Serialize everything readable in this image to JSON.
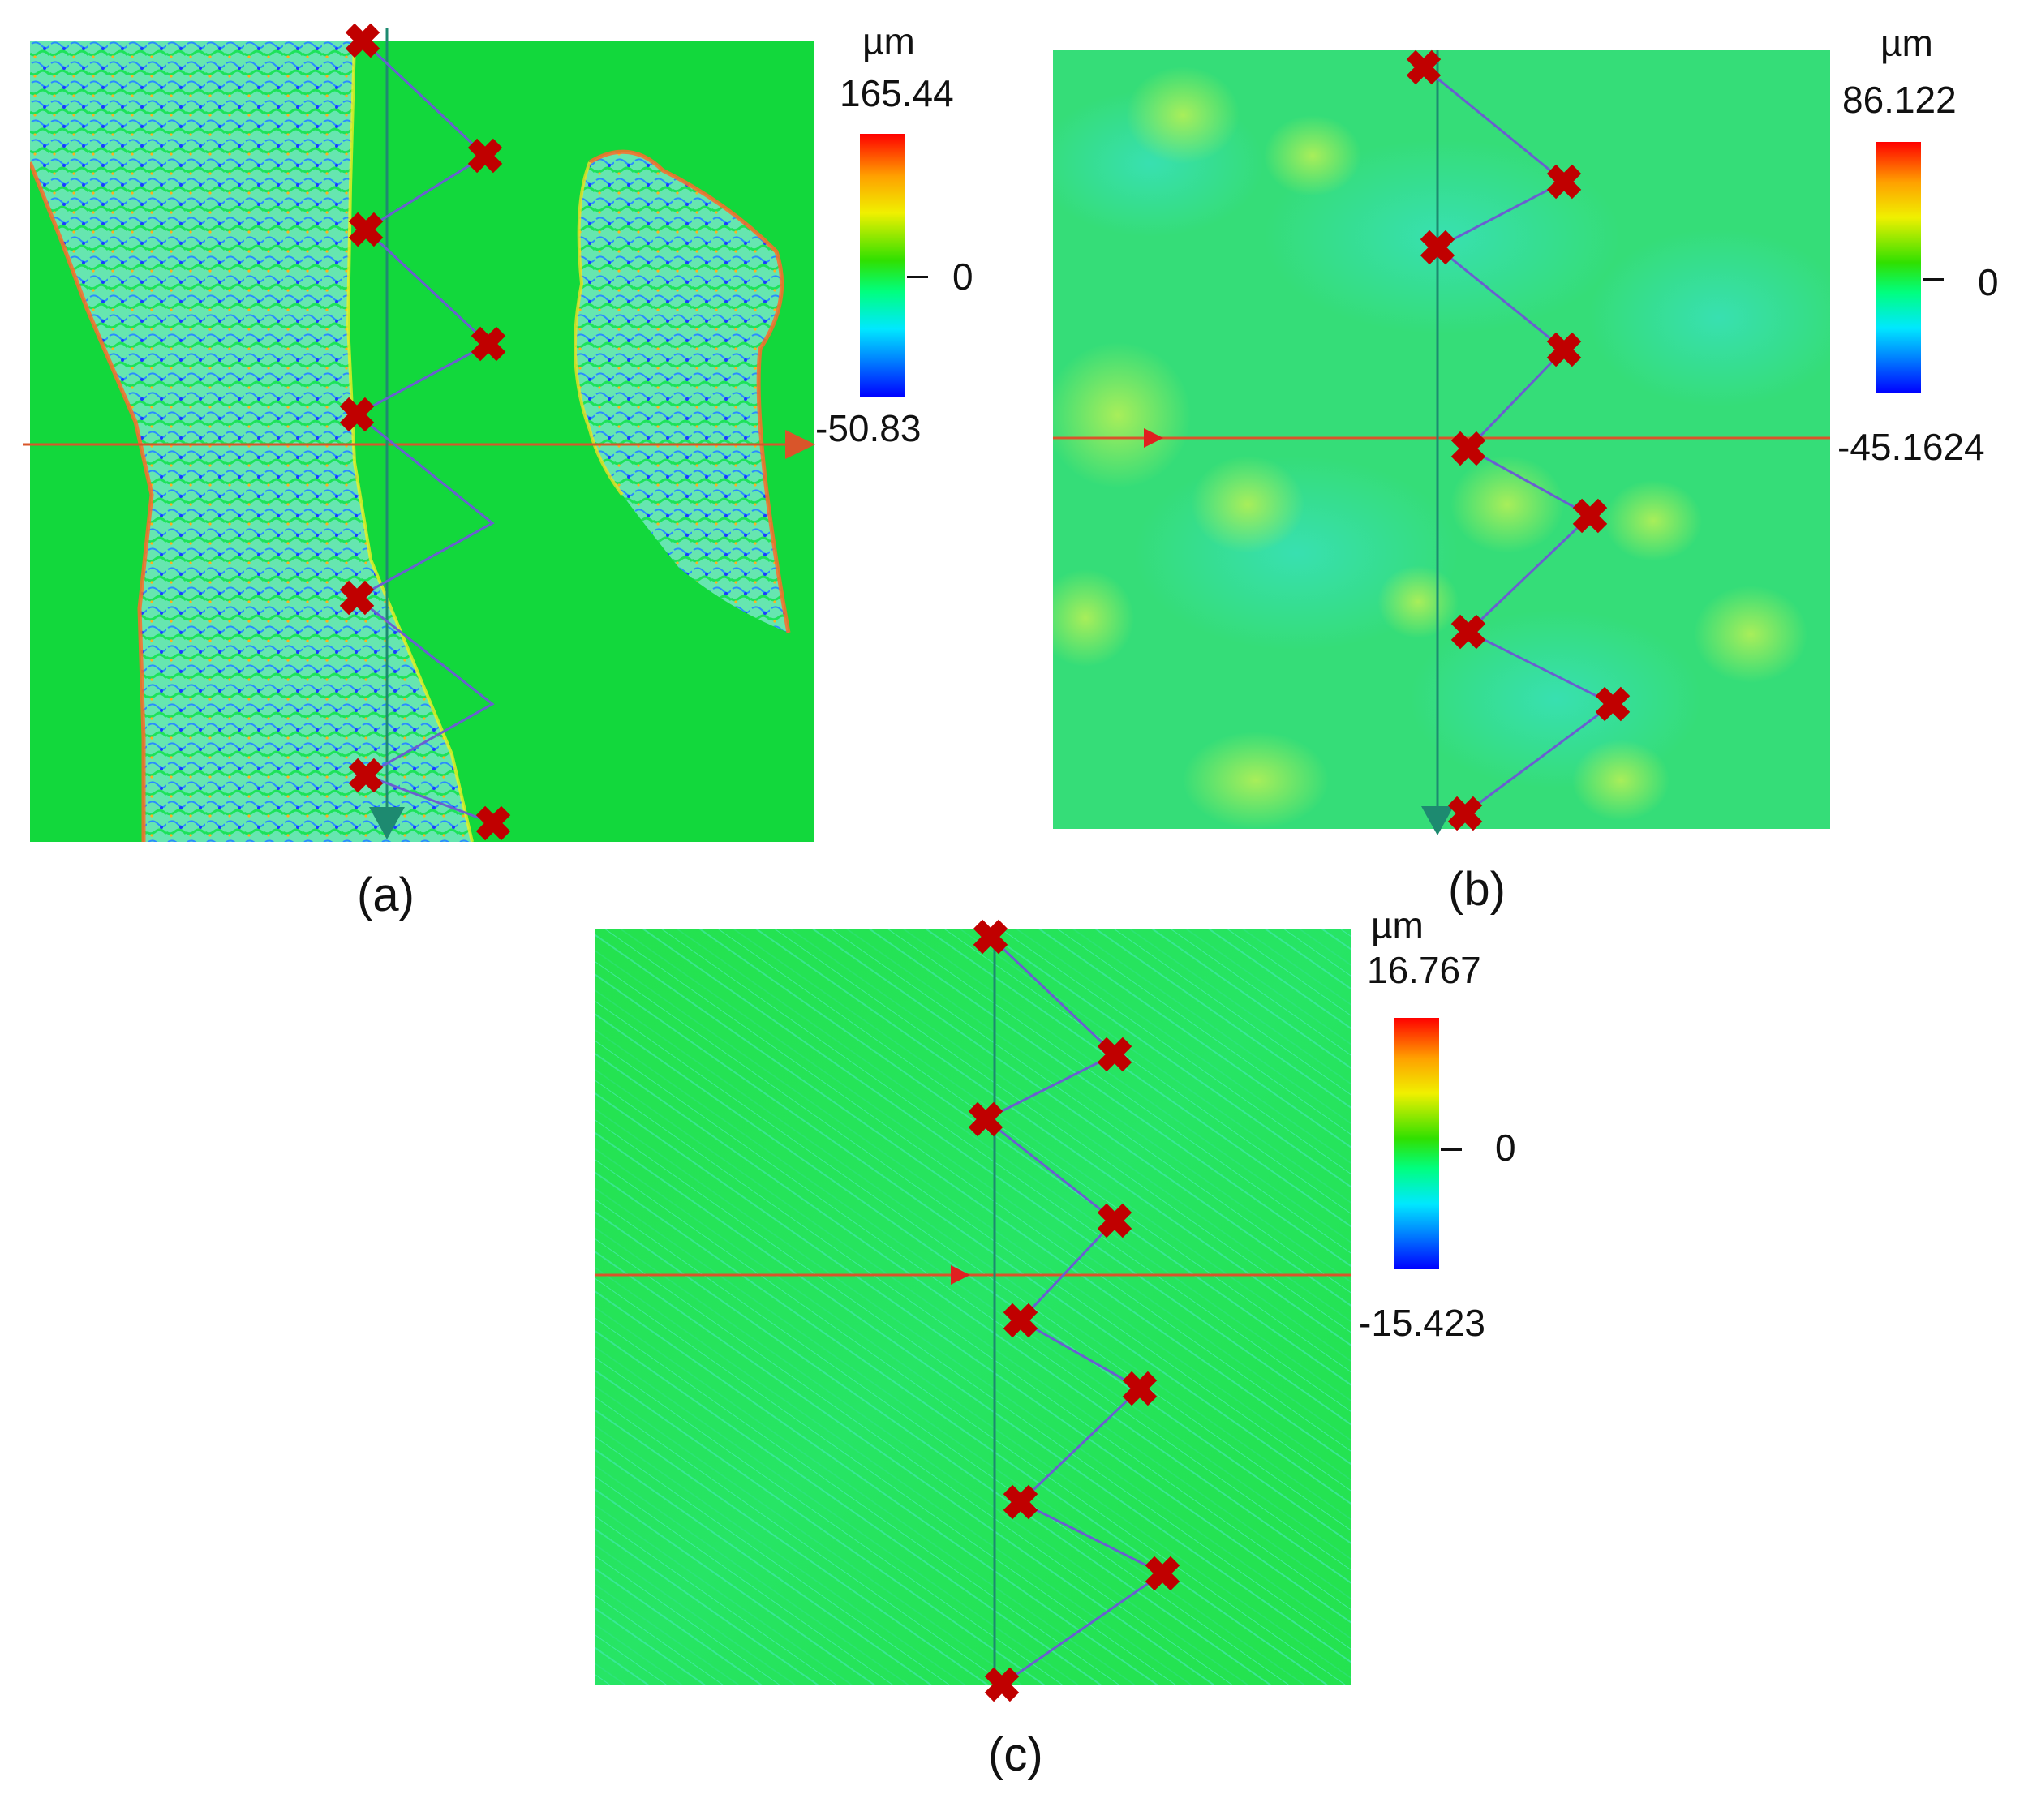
{
  "panels": [
    {
      "label": "(a)",
      "colorbar": {
        "unit": "µm",
        "max": "165.44",
        "zero": "0",
        "min": "-50.83"
      },
      "colors": {
        "base": "#12d83c",
        "band": "#6fe7b3",
        "edge": "#ff5a2a",
        "pit": "#1c3cff",
        "marker": "#c00000",
        "path": "#6a5fd0",
        "hline": "#d9552a",
        "vline": "#1d8a70"
      }
    },
    {
      "label": "(b)",
      "colorbar": {
        "unit": "µm",
        "max": "86.122",
        "zero": "0",
        "min": "-45.1624"
      },
      "colors": {
        "base": "#30dc6a",
        "spot": "#7fe65a",
        "marker": "#c00000",
        "path": "#6a5fd0",
        "hline": "#d9552a",
        "vline": "#1d8a70"
      }
    },
    {
      "label": "(c)",
      "colorbar": {
        "unit": "µm",
        "max": "16.767",
        "zero": "0",
        "min": "-15.423"
      },
      "colors": {
        "base": "#1fe04a",
        "marker": "#c00000",
        "path": "#6a5fd0",
        "hline": "#d9552a",
        "vline": "#1d8a70"
      }
    }
  ]
}
